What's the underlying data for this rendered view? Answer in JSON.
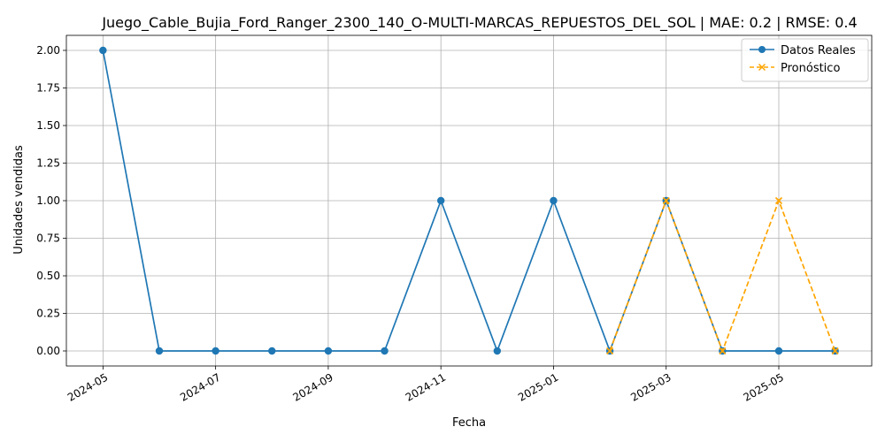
{
  "chart_data": {
    "type": "line",
    "title": "Juego_Cable_Bujia_Ford_Ranger_2300_140_O-MULTI-MARCAS_REPUESTOS_DEL_SOL | MAE: 0.2 | RMSE: 0.4",
    "xlabel": "Fecha",
    "ylabel": "Unidades vendidas",
    "ylim": [
      -0.1,
      2.1
    ],
    "yticks": [
      "0.00",
      "0.25",
      "0.50",
      "0.75",
      "1.00",
      "1.25",
      "1.50",
      "1.75",
      "2.00"
    ],
    "xticks": [
      "2024-05",
      "2024-07",
      "2024-09",
      "2024-11",
      "2025-01",
      "2025-03",
      "2025-05"
    ],
    "x": [
      "2024-05",
      "2024-06",
      "2024-07",
      "2024-08",
      "2024-09",
      "2024-10",
      "2024-11",
      "2024-12",
      "2025-01",
      "2025-02",
      "2025-03",
      "2025-04",
      "2025-05",
      "2025-06"
    ],
    "grid": true,
    "legend_position": "top-right",
    "series": [
      {
        "name": "Datos Reales",
        "color": "#1f77b4",
        "marker": "circle",
        "style": "solid",
        "x": [
          "2024-05",
          "2024-06",
          "2024-07",
          "2024-08",
          "2024-09",
          "2024-10",
          "2024-11",
          "2024-12",
          "2025-01",
          "2025-02",
          "2025-03",
          "2025-04",
          "2025-05",
          "2025-06"
        ],
        "values": [
          2,
          0,
          0,
          0,
          0,
          0,
          1,
          0,
          1,
          0,
          1,
          0,
          0,
          0
        ]
      },
      {
        "name": "Pronóstico",
        "color": "#ffa500",
        "marker": "x",
        "style": "dashed",
        "x": [
          "2025-02",
          "2025-03",
          "2025-04",
          "2025-05",
          "2025-06"
        ],
        "values": [
          0,
          1,
          0,
          1,
          0
        ]
      }
    ]
  }
}
